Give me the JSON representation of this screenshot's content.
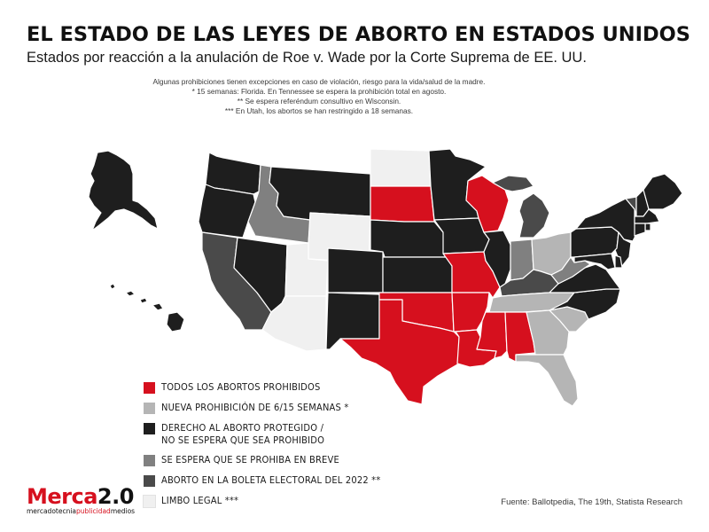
{
  "header": {
    "title": "EL ESTADO DE LAS LEYES DE ABORTO EN ESTADOS UNIDOS",
    "subtitle": "Estados por reacción a la anulación de Roe v. Wade por la Corte Suprema de EE. UU."
  },
  "notes": [
    "Algunas prohibiciones tienen excepciones en caso de violación, riesgo para la vida/salud de la madre.",
    "* 15 semanas: Florida. En Tennessee se espera la prohibición total en agosto.",
    "** Se espera referéndum consultivo en Wisconsin.",
    "*** En Utah, los abortos se han restringido a 18 semanas."
  ],
  "colors": {
    "prohibido": "#d6101e",
    "nueva_prohibicion": "#b5b5b5",
    "protegido": "#1e1e1e",
    "breve": "#808080",
    "boleta": "#4a4a4a",
    "limbo": "#f0f0f0",
    "border": "#ffffff"
  },
  "legend": [
    {
      "key": "prohibido",
      "label": "TODOS LOS ABORTOS PROHIBIDOS"
    },
    {
      "key": "nueva_prohibicion",
      "label": "NUEVA PROHIBICIÓN DE 6/15 SEMANAS *"
    },
    {
      "key": "protegido",
      "label": "DERECHO AL ABORTO PROTEGIDO /\nNO SE ESPERA QUE SEA PROHIBIDO"
    },
    {
      "key": "breve",
      "label": "SE ESPERA QUE SE PROHIBA EN BREVE"
    },
    {
      "key": "boleta",
      "label": "ABORTO EN LA BOLETA ELECTORAL DEL 2022 **"
    },
    {
      "key": "limbo",
      "label": "LIMBO LEGAL ***"
    }
  ],
  "states": [
    {
      "id": "AK",
      "status": "protegido"
    },
    {
      "id": "HI",
      "status": "protegido"
    },
    {
      "id": "WA",
      "status": "protegido"
    },
    {
      "id": "OR",
      "status": "protegido"
    },
    {
      "id": "CA",
      "status": "boleta"
    },
    {
      "id": "NV",
      "status": "protegido"
    },
    {
      "id": "ID",
      "status": "breve"
    },
    {
      "id": "MT",
      "status": "protegido"
    },
    {
      "id": "WY",
      "status": "limbo"
    },
    {
      "id": "UT",
      "status": "limbo"
    },
    {
      "id": "AZ",
      "status": "limbo"
    },
    {
      "id": "CO",
      "status": "protegido"
    },
    {
      "id": "NM",
      "status": "protegido"
    },
    {
      "id": "ND",
      "status": "limbo"
    },
    {
      "id": "SD",
      "status": "prohibido"
    },
    {
      "id": "NE",
      "status": "protegido"
    },
    {
      "id": "KS",
      "status": "protegido"
    },
    {
      "id": "OK",
      "status": "prohibido"
    },
    {
      "id": "TX",
      "status": "prohibido"
    },
    {
      "id": "MN",
      "status": "protegido"
    },
    {
      "id": "IA",
      "status": "protegido"
    },
    {
      "id": "MO",
      "status": "prohibido"
    },
    {
      "id": "AR",
      "status": "prohibido"
    },
    {
      "id": "LA",
      "status": "prohibido"
    },
    {
      "id": "WI",
      "status": "prohibido"
    },
    {
      "id": "IL",
      "status": "protegido"
    },
    {
      "id": "MI",
      "status": "boleta"
    },
    {
      "id": "IN",
      "status": "breve"
    },
    {
      "id": "OH",
      "status": "nueva_prohibicion"
    },
    {
      "id": "KY",
      "status": "boleta"
    },
    {
      "id": "TN",
      "status": "nueva_prohibicion"
    },
    {
      "id": "MS",
      "status": "prohibido"
    },
    {
      "id": "AL",
      "status": "prohibido"
    },
    {
      "id": "GA",
      "status": "nueva_prohibicion"
    },
    {
      "id": "FL",
      "status": "nueva_prohibicion"
    },
    {
      "id": "SC",
      "status": "nueva_prohibicion"
    },
    {
      "id": "NC",
      "status": "protegido"
    },
    {
      "id": "VA",
      "status": "protegido"
    },
    {
      "id": "WV",
      "status": "breve"
    },
    {
      "id": "PA",
      "status": "protegido"
    },
    {
      "id": "NY",
      "status": "protegido"
    },
    {
      "id": "VT",
      "status": "boleta"
    },
    {
      "id": "NH",
      "status": "protegido"
    },
    {
      "id": "ME",
      "status": "protegido"
    },
    {
      "id": "MA",
      "status": "protegido"
    },
    {
      "id": "RI",
      "status": "protegido"
    },
    {
      "id": "CT",
      "status": "protegido"
    },
    {
      "id": "NJ",
      "status": "protegido"
    },
    {
      "id": "DE",
      "status": "protegido"
    },
    {
      "id": "MD",
      "status": "protegido"
    }
  ],
  "logo": {
    "brand": "Merca2.0",
    "brand_main": "Merca",
    "brand_version": "2.0",
    "tag_a": "mercadotecnia",
    "tag_b": "publicidad",
    "tag_c": "medios"
  },
  "source": "Fuente: Ballotpedia, The 19th, Statista Research"
}
